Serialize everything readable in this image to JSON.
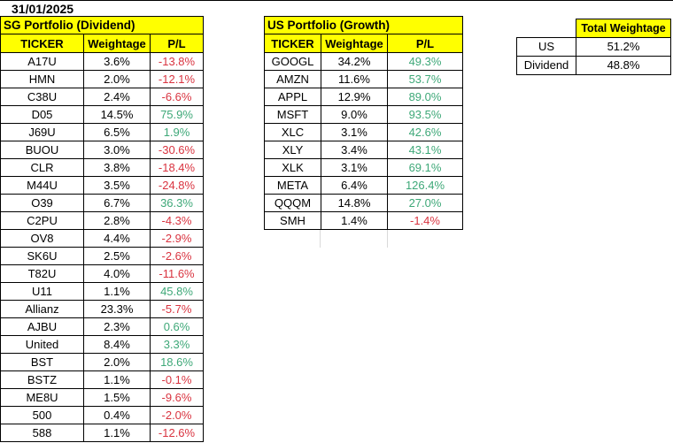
{
  "date": "31/01/2025",
  "colors": {
    "header_bg": "#ffff00",
    "positive_text": "#3ea878",
    "negative_text": "#d93440",
    "border": "#000000"
  },
  "sg_portfolio": {
    "title": "SG Portfolio (Dividend)",
    "columns": [
      "TICKER",
      "Weightage",
      "P/L"
    ],
    "rows": [
      [
        "A17U",
        "3.6%",
        "-13.8%"
      ],
      [
        "HMN",
        "2.0%",
        "-12.1%"
      ],
      [
        "C38U",
        "2.4%",
        "-6.6%"
      ],
      [
        "D05",
        "14.5%",
        "75.9%"
      ],
      [
        "J69U",
        "6.5%",
        "1.9%"
      ],
      [
        "BUOU",
        "3.0%",
        "-30.6%"
      ],
      [
        "CLR",
        "3.8%",
        "-18.4%"
      ],
      [
        "M44U",
        "3.5%",
        "-24.8%"
      ],
      [
        "O39",
        "6.7%",
        "36.3%"
      ],
      [
        "C2PU",
        "2.8%",
        "-4.3%"
      ],
      [
        "OV8",
        "4.4%",
        "-2.9%"
      ],
      [
        "SK6U",
        "2.5%",
        "-2.6%"
      ],
      [
        "T82U",
        "4.0%",
        "-11.6%"
      ],
      [
        "U11",
        "1.1%",
        "45.8%"
      ],
      [
        "Allianz",
        "23.3%",
        "-5.7%"
      ],
      [
        "AJBU",
        "2.3%",
        "0.6%"
      ],
      [
        "United",
        "8.4%",
        "3.3%"
      ],
      [
        "BST",
        "2.0%",
        "18.6%"
      ],
      [
        "BSTZ",
        "1.1%",
        "-0.1%"
      ],
      [
        "ME8U",
        "1.5%",
        "-9.6%"
      ],
      [
        "500",
        "0.4%",
        "-2.0%"
      ],
      [
        "588",
        "1.1%",
        "-12.6%"
      ]
    ]
  },
  "us_portfolio": {
    "title": "US Portfolio (Growth)",
    "columns": [
      "TICKER",
      "Weightage",
      "P/L"
    ],
    "rows": [
      [
        "GOOGL",
        "34.2%",
        "49.3%"
      ],
      [
        "AMZN",
        "11.6%",
        "53.7%"
      ],
      [
        "APPL",
        "12.9%",
        "89.0%"
      ],
      [
        "MSFT",
        "9.0%",
        "93.5%"
      ],
      [
        "XLC",
        "3.1%",
        "42.6%"
      ],
      [
        "XLY",
        "3.4%",
        "43.1%"
      ],
      [
        "XLK",
        "3.1%",
        "69.1%"
      ],
      [
        "META",
        "6.4%",
        "126.4%"
      ],
      [
        "QQQM",
        "14.8%",
        "27.0%"
      ],
      [
        "SMH",
        "1.4%",
        "-1.4%"
      ]
    ]
  },
  "total_weightage": {
    "title": "Total Weightage",
    "rows": [
      [
        "US",
        "51.2%"
      ],
      [
        "Dividend",
        "48.8%"
      ]
    ]
  }
}
